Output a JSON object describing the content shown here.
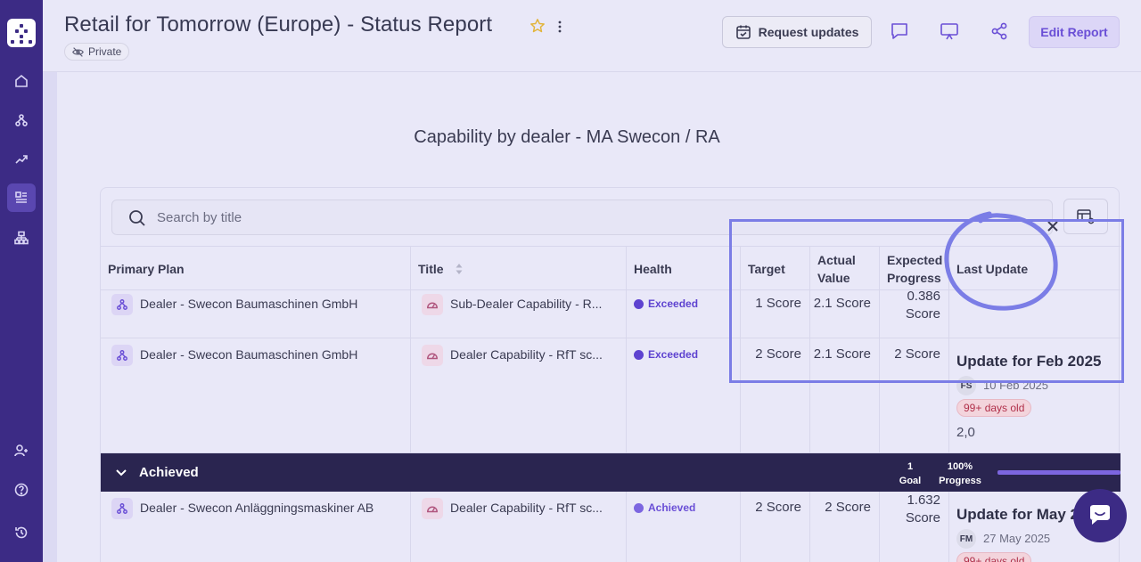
{
  "report": {
    "title": "Retail for Tomorrow (Europe) - Status Report",
    "visibility": "Private"
  },
  "header": {
    "request_updates": "Request updates",
    "edit_report": "Edit Report"
  },
  "widget": {
    "title": "Capability by dealer - MA Swecon / RA",
    "search_placeholder": "Search by title"
  },
  "columns": {
    "primary_plan": "Primary Plan",
    "title": "Title",
    "health": "Health",
    "target": "Target",
    "actual_value": "Actual Value",
    "expected_progress": "Expected Progress",
    "last_update": "Last Update"
  },
  "rows": [
    {
      "primary_plan": "Dealer - Swecon Baumaschinen GmbH",
      "title": "Sub-Dealer Capability - R...",
      "health": "Exceeded",
      "target": "1 Score",
      "actual_value": "2.1 Score",
      "expected_progress": "0.386 Score"
    },
    {
      "primary_plan": "Dealer - Swecon Baumaschinen GmbH",
      "title": "Dealer Capability - RfT sc...",
      "health": "Exceeded",
      "target": "2 Score",
      "actual_value": "2.1 Score",
      "expected_progress": "2 Score",
      "update_title": "Update for Feb 2025",
      "update_initials": "FS",
      "update_date": "10 Feb 2025",
      "update_age": "99+ days old",
      "update_value": "2,0"
    }
  ],
  "group": {
    "label": "Achieved",
    "goal_count": "1",
    "goal_label": "Goal",
    "progress": "100%",
    "progress_label": "Progress",
    "progress_fraction": 1.0
  },
  "achieved_rows": [
    {
      "primary_plan": "Dealer - Swecon Anläggningsmaskiner AB",
      "title": "Dealer Capability - RfT sc...",
      "health": "Achieved",
      "target": "2 Score",
      "actual_value": "2 Score",
      "expected_progress": "1.632 Score",
      "update_title": "Update for May 2",
      "update_initials": "FM",
      "update_date": "27 May 2025",
      "update_age": "99+ days old"
    }
  ]
}
